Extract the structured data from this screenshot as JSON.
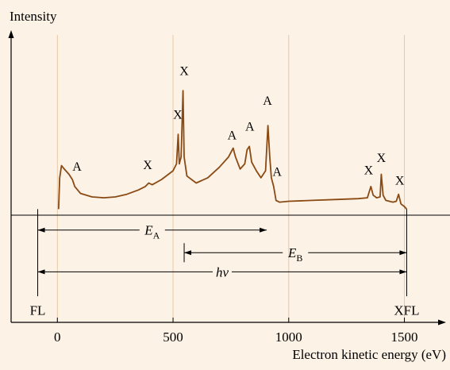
{
  "chart_data": {
    "type": "line",
    "ylabel": "Intensity",
    "xlabel": "Electron kinetic energy (eV)",
    "xlim": [
      -200,
      1680
    ],
    "ylim": [
      -0.65,
      1.0
    ],
    "x_ticks": [
      0,
      500,
      1000,
      1500
    ],
    "x_tick_labels": [
      "0",
      "500",
      "1000",
      "1500"
    ],
    "grid": true,
    "grid_x": [
      0,
      500,
      1000,
      1500
    ],
    "line_color": "#8a4a14",
    "grid_color": "#e8c8a8",
    "series": [
      {
        "points": [
          [
            5,
            0
          ],
          [
            10,
            0.18
          ],
          [
            18,
            0.25
          ],
          [
            30,
            0.23
          ],
          [
            50,
            0.2
          ],
          [
            65,
            0.17
          ],
          [
            75,
            0.13
          ],
          [
            100,
            0.09
          ],
          [
            150,
            0.07
          ],
          [
            200,
            0.065
          ],
          [
            250,
            0.07
          ],
          [
            300,
            0.085
          ],
          [
            350,
            0.11
          ],
          [
            380,
            0.13
          ],
          [
            395,
            0.15
          ],
          [
            410,
            0.14
          ],
          [
            450,
            0.17
          ],
          [
            500,
            0.22
          ],
          [
            515,
            0.26
          ],
          [
            522,
            0.43
          ],
          [
            527,
            0.26
          ],
          [
            535,
            0.3
          ],
          [
            543,
            0.68
          ],
          [
            548,
            0.3
          ],
          [
            560,
            0.19
          ],
          [
            600,
            0.15
          ],
          [
            650,
            0.18
          ],
          [
            700,
            0.24
          ],
          [
            740,
            0.3
          ],
          [
            760,
            0.35
          ],
          [
            770,
            0.3
          ],
          [
            790,
            0.23
          ],
          [
            810,
            0.26
          ],
          [
            820,
            0.34
          ],
          [
            830,
            0.36
          ],
          [
            840,
            0.27
          ],
          [
            860,
            0.22
          ],
          [
            880,
            0.18
          ],
          [
            900,
            0.22
          ],
          [
            910,
            0.48
          ],
          [
            918,
            0.3
          ],
          [
            925,
            0.18
          ],
          [
            935,
            0.13
          ],
          [
            945,
            0.05
          ],
          [
            960,
            0.04
          ],
          [
            1000,
            0.045
          ],
          [
            1100,
            0.05
          ],
          [
            1200,
            0.055
          ],
          [
            1300,
            0.06
          ],
          [
            1340,
            0.065
          ],
          [
            1355,
            0.13
          ],
          [
            1365,
            0.08
          ],
          [
            1380,
            0.065
          ],
          [
            1395,
            0.07
          ],
          [
            1400,
            0.2
          ],
          [
            1408,
            0.08
          ],
          [
            1420,
            0.05
          ],
          [
            1450,
            0.04
          ],
          [
            1465,
            0.045
          ],
          [
            1475,
            0.085
          ],
          [
            1485,
            0.03
          ],
          [
            1500,
            0.015
          ],
          [
            1510,
            0
          ]
        ]
      }
    ],
    "annotations": [
      {
        "text": "A",
        "x": 85,
        "y": 0.22
      },
      {
        "text": "X",
        "x": 390,
        "y": 0.23
      },
      {
        "text": "X",
        "x": 520,
        "y": 0.52
      },
      {
        "text": "X",
        "x": 548,
        "y": 0.77
      },
      {
        "text": "A",
        "x": 755,
        "y": 0.4
      },
      {
        "text": "A",
        "x": 832,
        "y": 0.45
      },
      {
        "text": "A",
        "x": 908,
        "y": 0.6
      },
      {
        "text": "A",
        "x": 950,
        "y": 0.19
      },
      {
        "text": "X",
        "x": 1345,
        "y": 0.2
      },
      {
        "text": "X",
        "x": 1400,
        "y": 0.27
      },
      {
        "text": "X",
        "x": 1480,
        "y": 0.14
      }
    ],
    "vertical_markers": [
      {
        "name": "FL",
        "x": -85,
        "label": "FL"
      },
      {
        "name": "XFL",
        "x": 1510,
        "label": "XFL"
      }
    ],
    "intervals": [
      {
        "name": "E_A",
        "x1": -85,
        "x2": 905,
        "y": -0.12,
        "label_main": "E",
        "label_sub": "A"
      },
      {
        "name": "E_B",
        "x1": 548,
        "x2": 1510,
        "y": -0.25,
        "label_main": "E",
        "label_sub": "B"
      },
      {
        "name": "h_nu",
        "x1": -85,
        "x2": 1510,
        "y": -0.36,
        "label_main": "hν",
        "label_sub": ""
      }
    ]
  }
}
